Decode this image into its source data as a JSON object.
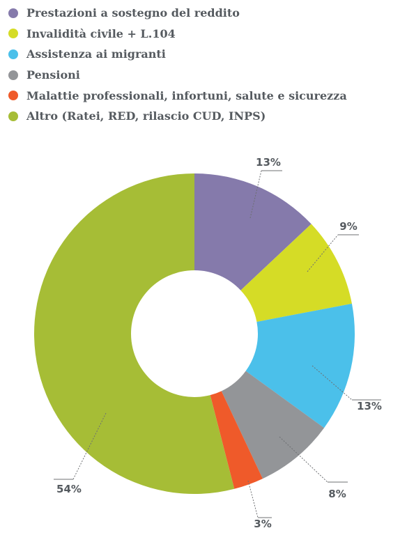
{
  "chart_data": {
    "type": "pie",
    "donut": true,
    "legend_position": "top-left",
    "categories": [
      "Prestazioni a sostegno del reddito",
      "Invalidità civile + L.104",
      "Assistenza ai migranti",
      "Pensioni",
      "Malattie professionali, infortuni, salute e sicurezza",
      "Altro (Ratei, RED, rilascio CUD, INPS)"
    ],
    "values": [
      13,
      9,
      13,
      8,
      3,
      54
    ],
    "value_labels": [
      "13%",
      "9%",
      "13%",
      "8%",
      "3%",
      "54%"
    ],
    "colors": [
      "#857aab",
      "#d5dc26",
      "#4bc0ea",
      "#939598",
      "#ef5a2a",
      "#a6bd36"
    ]
  }
}
